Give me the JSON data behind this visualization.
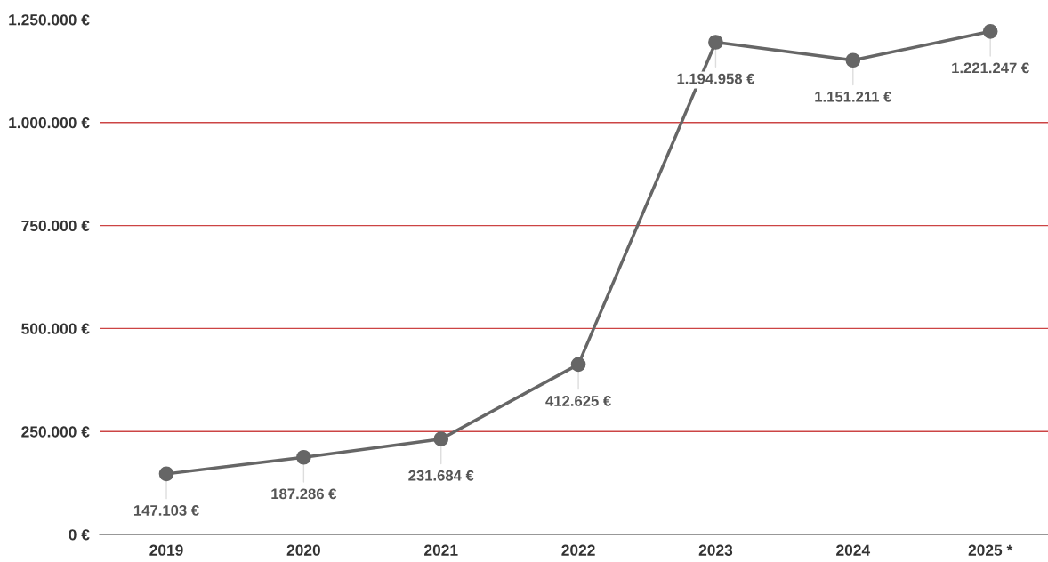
{
  "chart_data": {
    "type": "line",
    "categories": [
      "2019",
      "2020",
      "2021",
      "2022",
      "2023",
      "2024",
      "2025 *"
    ],
    "series": [
      {
        "color": "#666666",
        "values": [
          147103,
          187286,
          231684,
          412625,
          1194958,
          1151211,
          1221247
        ],
        "value_labels": [
          "147.103 €",
          "187.286 €",
          "231.684 €",
          "412.625 €",
          "1.194.958 €",
          "1.151.211 €",
          "1.221.247 €"
        ]
      }
    ],
    "ylim": [
      0,
      1250000
    ],
    "yticks": [
      {
        "value": 0,
        "label": "0 €"
      },
      {
        "value": 250000,
        "label": "250.000 €"
      },
      {
        "value": 500000,
        "label": "500.000 €"
      },
      {
        "value": 750000,
        "label": "750.000 €"
      },
      {
        "value": 1000000,
        "label": "1.000.000 €"
      },
      {
        "value": 1250000,
        "label": "1.250.000 €"
      }
    ],
    "grid": "y",
    "marker": "circle",
    "line_style": "solid"
  }
}
